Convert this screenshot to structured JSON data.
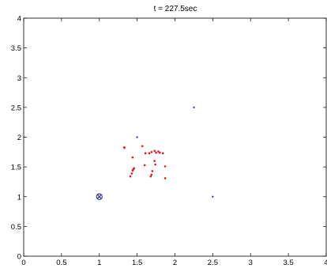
{
  "chart_data": {
    "type": "scatter",
    "title": "t = 227.5sec",
    "xlim": [
      0,
      4
    ],
    "ylim": [
      0,
      4
    ],
    "grid": false,
    "xticks": [
      "0",
      "0.5",
      "1",
      "1.5",
      "2",
      "2.5",
      "3",
      "3.5",
      "4"
    ],
    "yticks": [
      "0",
      "0.5",
      "1",
      "1.5",
      "2",
      "2.5",
      "3",
      "3.5",
      "4"
    ],
    "series": [
      {
        "color": "#e8141c",
        "marker": "dot",
        "points": [
          [
            1.33,
            1.83
          ],
          [
            1.33,
            1.82
          ],
          [
            1.44,
            1.66
          ],
          [
            1.57,
            1.85
          ],
          [
            1.61,
            1.73
          ],
          [
            1.66,
            1.73
          ],
          [
            1.69,
            1.75
          ],
          [
            1.73,
            1.77
          ],
          [
            1.75,
            1.74
          ],
          [
            1.78,
            1.76
          ],
          [
            1.8,
            1.74
          ],
          [
            1.84,
            1.73
          ],
          [
            1.73,
            1.6
          ],
          [
            1.46,
            1.48
          ],
          [
            1.45,
            1.46
          ],
          [
            1.44,
            1.44
          ],
          [
            1.43,
            1.39
          ],
          [
            1.41,
            1.34
          ],
          [
            1.6,
            1.53
          ],
          [
            1.74,
            1.54
          ],
          [
            1.87,
            1.51
          ],
          [
            1.7,
            1.43
          ],
          [
            1.69,
            1.37
          ],
          [
            1.68,
            1.34
          ],
          [
            1.87,
            1.31
          ]
        ]
      },
      {
        "color": "#1a1aff",
        "marker": "dot",
        "points": [
          [
            1.5,
            2.0
          ],
          [
            2.25,
            2.5
          ],
          [
            2.5,
            1.0
          ]
        ]
      },
      {
        "color": "#1a1a8c",
        "marker": "circle-x",
        "points": [
          [
            1.0,
            1.0
          ]
        ]
      }
    ]
  }
}
